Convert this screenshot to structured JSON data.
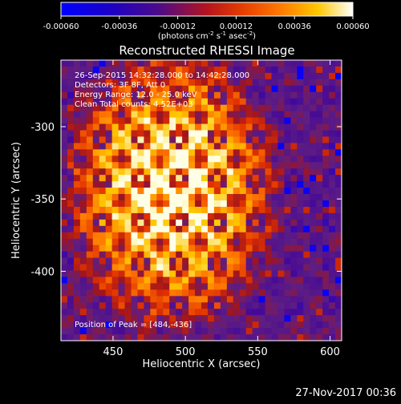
{
  "colorbar": {
    "tick_labels": [
      "-0.00060",
      "-0.00036",
      "-0.00012",
      "0.00012",
      "0.00036",
      "0.00060"
    ],
    "range": [
      -0.0006,
      0.0006
    ],
    "unit_prefix": "(photons cm",
    "unit_exp1": "-2",
    "unit_mid": " s",
    "unit_exp2": "-1",
    "unit_mid2": " asec",
    "unit_exp3": "-2",
    "unit_suffix": ")"
  },
  "chart_data": {
    "type": "heatmap",
    "title": "Reconstructed RHESSI Image",
    "xlabel": "Heliocentric X (arcsec)",
    "ylabel": "Heliocentric Y (arcsec)",
    "xlim": [
      414,
      608
    ],
    "ylim": [
      -448,
      -254
    ],
    "xticks": [
      450,
      500,
      550,
      600
    ],
    "yticks": [
      -300,
      -350,
      -400
    ],
    "annotations": [
      "26-Sep-2015 14:32:28.000 to 14:42:28.000",
      "Detectors: 3F 8F, Att 0",
      "Energy Range: 12.0 - 25.0 keV",
      "Clean    Total counts: 4.52E+03"
    ],
    "peak_label": "Position of Peak = [484,-436]",
    "colormap": "rainbow/hot",
    "grid": false
  },
  "footer": {
    "timestamp": "27-Nov-2017 00:36"
  }
}
